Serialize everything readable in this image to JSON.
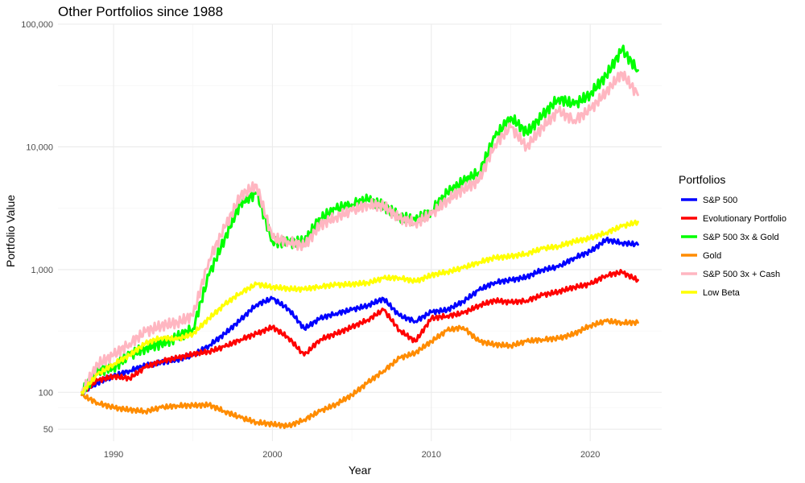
{
  "chart_data": {
    "type": "line",
    "title": "Other Portfolios since 1988",
    "xlabel": "Year",
    "ylabel": "Portfolio Value",
    "y_scale": "log10",
    "xlim": [
      1986.5,
      2024.5
    ],
    "ylim": [
      40,
      100000
    ],
    "x_ticks": [
      {
        "value": 1990,
        "label": "1990"
      },
      {
        "value": 2000,
        "label": "2000"
      },
      {
        "value": 2010,
        "label": "2010"
      },
      {
        "value": 2020,
        "label": "2020"
      }
    ],
    "y_ticks": [
      {
        "value": 50,
        "label": "50"
      },
      {
        "value": 100,
        "label": "100"
      },
      {
        "value": 1000,
        "label": "1,000"
      },
      {
        "value": 10000,
        "label": "10,000"
      },
      {
        "value": 100000,
        "label": "100,000"
      }
    ],
    "grid": true,
    "legend_title": "Portfolios",
    "legend_position": "right",
    "series": [
      {
        "name": "S&P 500",
        "color": "#0000ff",
        "x": [
          1988,
          1989,
          1990,
          1991,
          1992,
          1993,
          1994,
          1995,
          1996,
          1997,
          1998,
          1999,
          2000,
          2001,
          2002,
          2003,
          2004,
          2005,
          2006,
          2007,
          2008,
          2009,
          2010,
          2011,
          2012,
          2013,
          2014,
          2015,
          2016,
          2017,
          2018,
          2019,
          2020,
          2021,
          2022,
          2023
        ],
        "y": [
          100,
          120,
          135,
          150,
          165,
          175,
          185,
          200,
          240,
          300,
          390,
          520,
          580,
          480,
          330,
          400,
          440,
          470,
          510,
          580,
          420,
          380,
          450,
          470,
          550,
          680,
          790,
          820,
          870,
          1000,
          1050,
          1250,
          1400,
          1750,
          1650,
          1600
        ]
      },
      {
        "name": "Evolutionary Portfolio",
        "color": "#ff0000",
        "x": [
          1988,
          1989,
          1990,
          1991,
          1992,
          1993,
          1994,
          1995,
          1996,
          1997,
          1998,
          1999,
          2000,
          2001,
          2002,
          2003,
          2004,
          2005,
          2006,
          2007,
          2008,
          2009,
          2010,
          2011,
          2012,
          2013,
          2014,
          2015,
          2016,
          2017,
          2018,
          2019,
          2020,
          2021,
          2022,
          2023
        ],
        "y": [
          100,
          125,
          135,
          130,
          160,
          180,
          190,
          205,
          215,
          235,
          270,
          300,
          340,
          280,
          200,
          270,
          300,
          340,
          390,
          470,
          320,
          260,
          400,
          420,
          440,
          510,
          560,
          540,
          560,
          620,
          660,
          720,
          760,
          900,
          950,
          820
        ]
      },
      {
        "name": "S&P 500 3x & Gold",
        "color": "#00ff00",
        "x": [
          1988,
          1989,
          1990,
          1991,
          1992,
          1993,
          1994,
          1995,
          1996,
          1997,
          1998,
          1999,
          2000,
          2001,
          2002,
          2003,
          2004,
          2005,
          2006,
          2007,
          2008,
          2009,
          2010,
          2011,
          2012,
          2013,
          2014,
          2015,
          2016,
          2017,
          2018,
          2019,
          2020,
          2021,
          2022,
          2023
        ],
        "y": [
          100,
          150,
          160,
          200,
          230,
          250,
          280,
          330,
          900,
          1800,
          3500,
          4200,
          1700,
          1650,
          1700,
          2600,
          3100,
          3400,
          3700,
          3300,
          2700,
          2500,
          3000,
          4200,
          5200,
          6200,
          12000,
          17500,
          13000,
          18000,
          25000,
          22000,
          27000,
          38000,
          62000,
          42000
        ]
      },
      {
        "name": "Gold",
        "color": "#ff8c00",
        "x": [
          1988,
          1989,
          1990,
          1991,
          1992,
          1993,
          1994,
          1995,
          1996,
          1997,
          1998,
          1999,
          2000,
          2001,
          2002,
          2003,
          2004,
          2005,
          2006,
          2007,
          2008,
          2009,
          2010,
          2011,
          2012,
          2013,
          2014,
          2015,
          2016,
          2017,
          2018,
          2019,
          2020,
          2021,
          2022,
          2023
        ],
        "y": [
          95,
          82,
          75,
          72,
          70,
          75,
          78,
          78,
          79,
          70,
          62,
          57,
          55,
          53,
          60,
          70,
          80,
          95,
          120,
          150,
          190,
          210,
          260,
          320,
          340,
          260,
          245,
          240,
          260,
          270,
          275,
          300,
          350,
          380,
          370,
          370
        ]
      },
      {
        "name": "S&P 500 3x + Cash",
        "color": "#ffb6c1",
        "x": [
          1988,
          1989,
          1990,
          1991,
          1992,
          1993,
          1994,
          1995,
          1996,
          1997,
          1998,
          1999,
          2000,
          2001,
          2002,
          2003,
          2004,
          2005,
          2006,
          2007,
          2008,
          2009,
          2010,
          2011,
          2012,
          2013,
          2014,
          2015,
          2016,
          2017,
          2018,
          2019,
          2020,
          2021,
          2022,
          2023
        ],
        "y": [
          100,
          170,
          200,
          250,
          310,
          350,
          370,
          420,
          1200,
          2200,
          4000,
          4900,
          1800,
          1700,
          1550,
          2300,
          2700,
          3000,
          3400,
          3300,
          2600,
          2400,
          2800,
          3700,
          4500,
          5300,
          10500,
          14500,
          10000,
          14500,
          19500,
          16500,
          20000,
          28000,
          40000,
          26500
        ]
      },
      {
        "name": "Low Beta",
        "color": "#ffff00",
        "x": [
          1988,
          1989,
          1990,
          1991,
          1992,
          1993,
          1994,
          1995,
          1996,
          1997,
          1998,
          1999,
          2000,
          2001,
          2002,
          2003,
          2004,
          2005,
          2006,
          2007,
          2008,
          2009,
          2010,
          2011,
          2012,
          2013,
          2014,
          2015,
          2016,
          2017,
          2018,
          2019,
          2020,
          2021,
          2022,
          2023
        ],
        "y": [
          100,
          140,
          170,
          200,
          250,
          280,
          270,
          300,
          400,
          520,
          650,
          760,
          720,
          700,
          690,
          730,
          750,
          760,
          780,
          850,
          860,
          800,
          900,
          960,
          1030,
          1150,
          1250,
          1280,
          1350,
          1480,
          1550,
          1700,
          1800,
          2000,
          2250,
          2450
        ]
      }
    ]
  }
}
